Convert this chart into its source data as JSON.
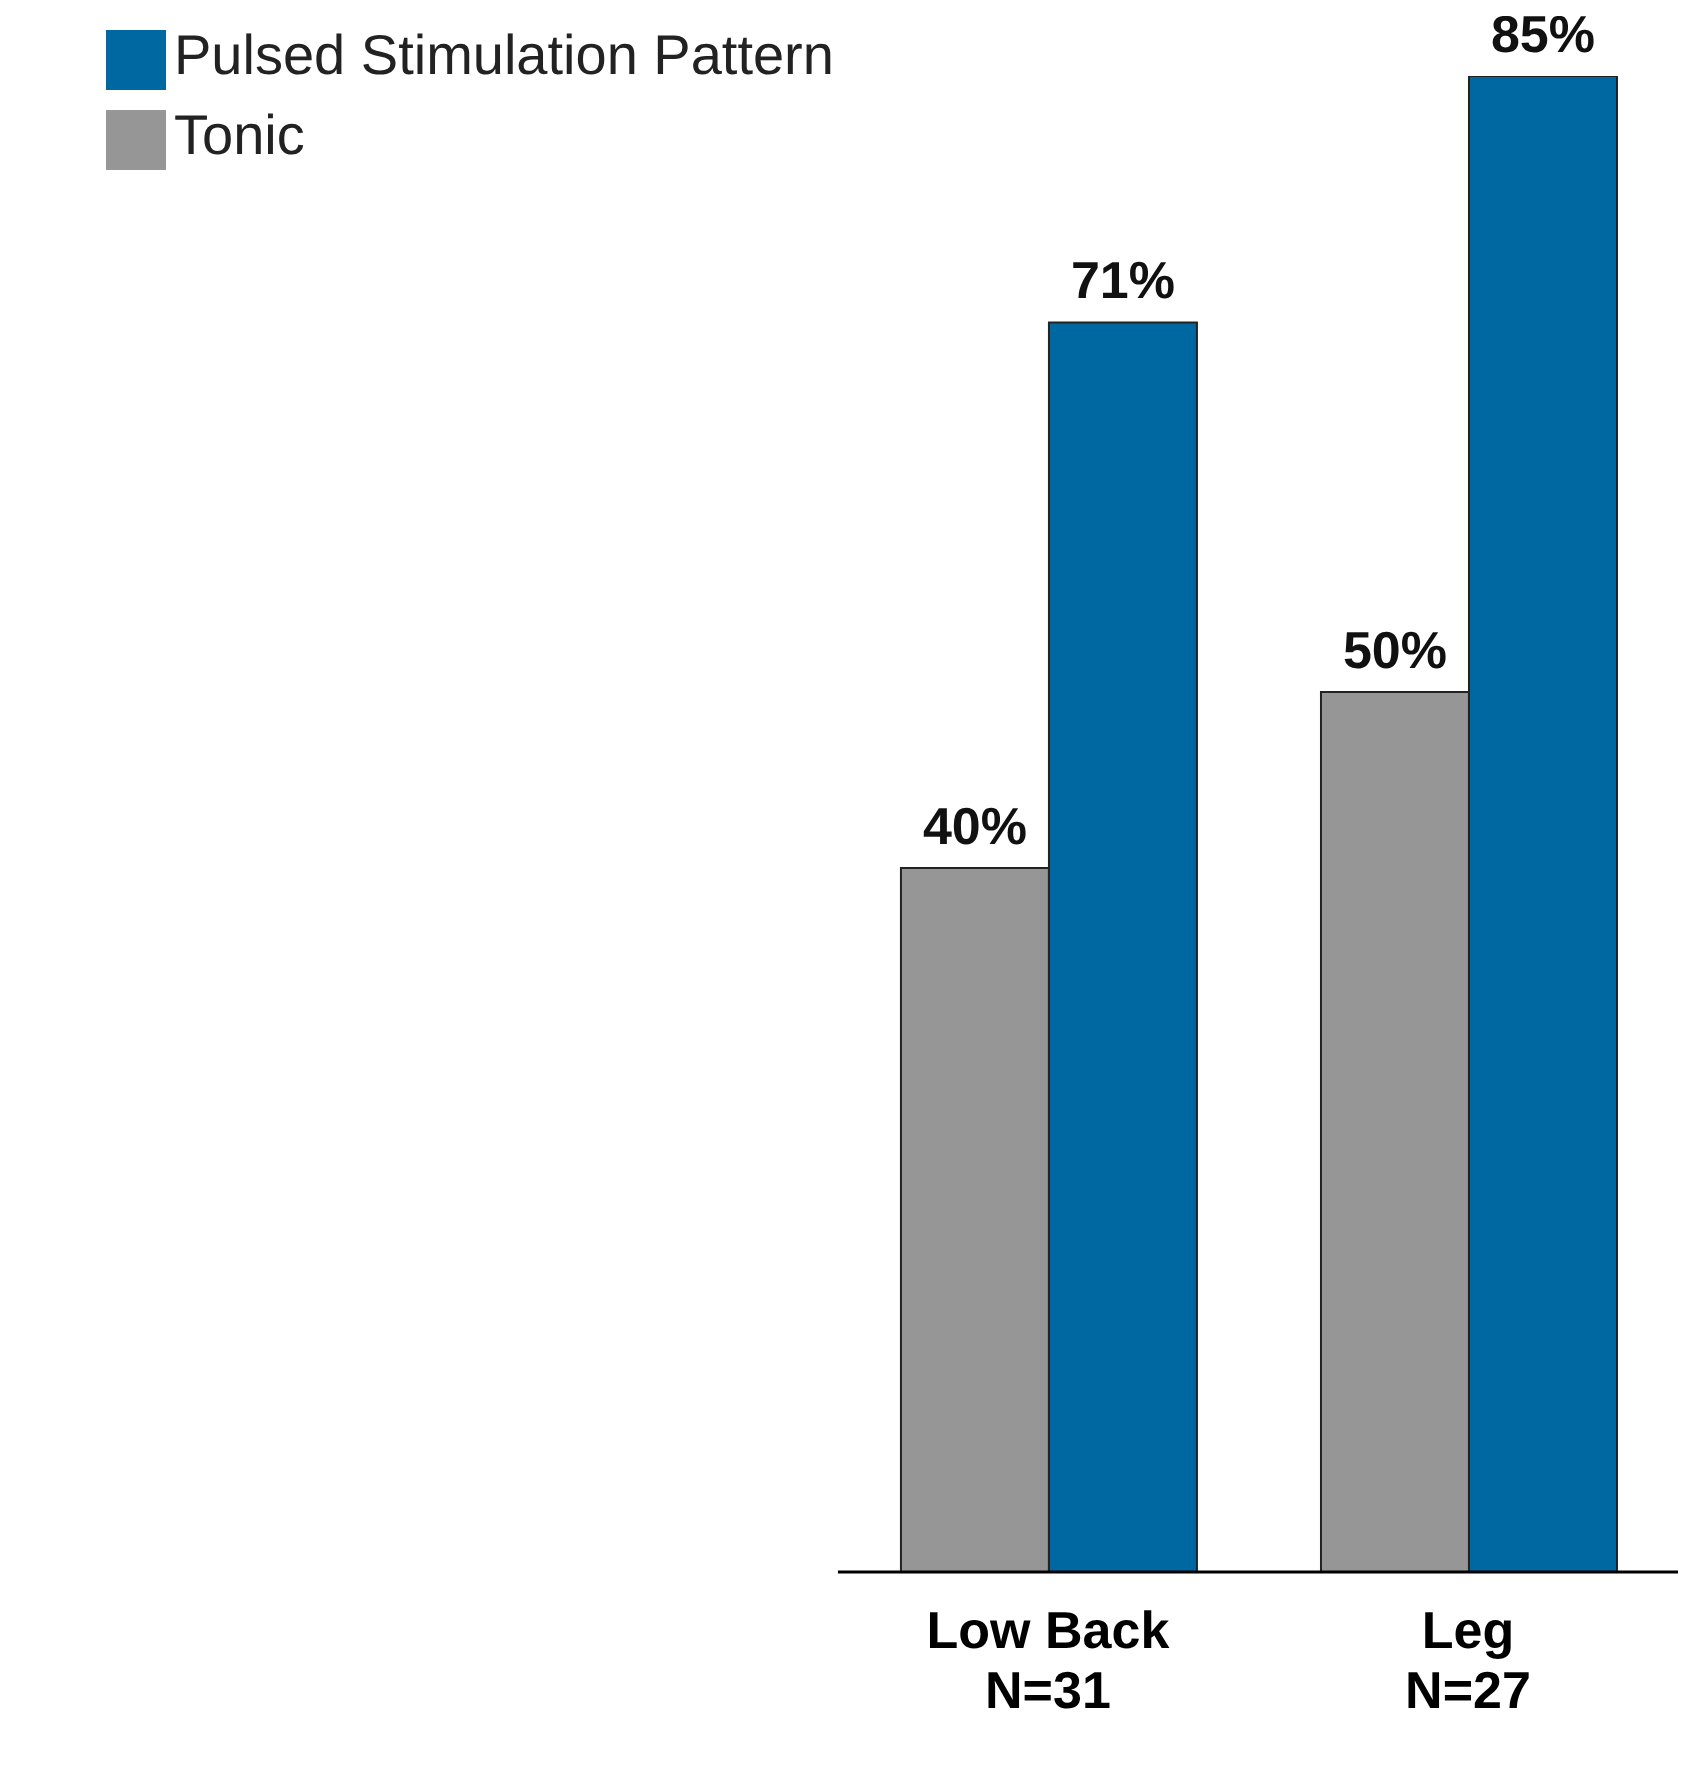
{
  "chart_data": {
    "type": "bar",
    "categories": [
      "Low Back\nN=31",
      "Leg\nN=27"
    ],
    "series": [
      {
        "name": "Tonic",
        "color": "#969696",
        "values": [
          40,
          50
        ],
        "value_labels": [
          "40%",
          "50%"
        ]
      },
      {
        "name": "Pulsed Stimulation Pattern",
        "color": "#0068a0",
        "values": [
          71,
          85
        ],
        "value_labels": [
          "71%",
          "85%"
        ]
      }
    ],
    "legend": "top left",
    "grid": false
  }
}
